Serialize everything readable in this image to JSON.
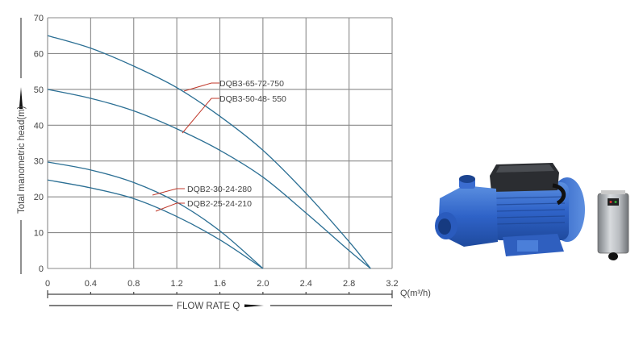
{
  "chart_data": {
    "type": "line",
    "title": "",
    "xlabel": "FLOW RATE Q",
    "x_unit_label": "Q(m³/h)",
    "ylabel": "Total manometric head(m)",
    "xlim": [
      0,
      3.2
    ],
    "ylim": [
      0,
      70
    ],
    "x_ticks": [
      "0",
      "0.4",
      "0.8",
      "1.2",
      "1.6",
      "2.0",
      "2.4",
      "2.8",
      "3.2"
    ],
    "y_ticks": [
      "0",
      "10",
      "20",
      "30",
      "40",
      "50",
      "60",
      "70"
    ],
    "grid": true,
    "legend_position": "inline callouts",
    "series": [
      {
        "name": "DQB3-65-72-750",
        "x": [
          0,
          0.4,
          0.8,
          1.2,
          1.6,
          2.0,
          2.4,
          2.8,
          3.0
        ],
        "values": [
          65,
          61.5,
          56.5,
          50.5,
          42.5,
          33,
          21,
          7.5,
          0
        ]
      },
      {
        "name": "DQB3-50-48- 550",
        "x": [
          0,
          0.4,
          0.8,
          1.2,
          1.6,
          2.0,
          2.4,
          2.8,
          3.0
        ],
        "values": [
          50,
          47.5,
          44,
          39,
          33,
          25.5,
          15.5,
          5,
          0
        ]
      },
      {
        "name": "DQB2-30-24-280",
        "x": [
          0,
          0.4,
          0.8,
          1.2,
          1.6,
          2.0
        ],
        "values": [
          29.7,
          27.5,
          24,
          18.5,
          10.5,
          0
        ]
      },
      {
        "name": "DQB2-25-24-210",
        "x": [
          0,
          0.4,
          0.8,
          1.2,
          1.6,
          2.0
        ],
        "values": [
          24.7,
          22.5,
          19.5,
          14.5,
          8,
          0
        ]
      }
    ]
  },
  "colors": {
    "curve": "#2b6f94",
    "callout": "#c0392b",
    "grid": "#8a8a8a",
    "text": "#444444"
  },
  "product": {
    "pump_alt": "Blue peripheral water pump",
    "controller_alt": "Grey pump controller box"
  }
}
